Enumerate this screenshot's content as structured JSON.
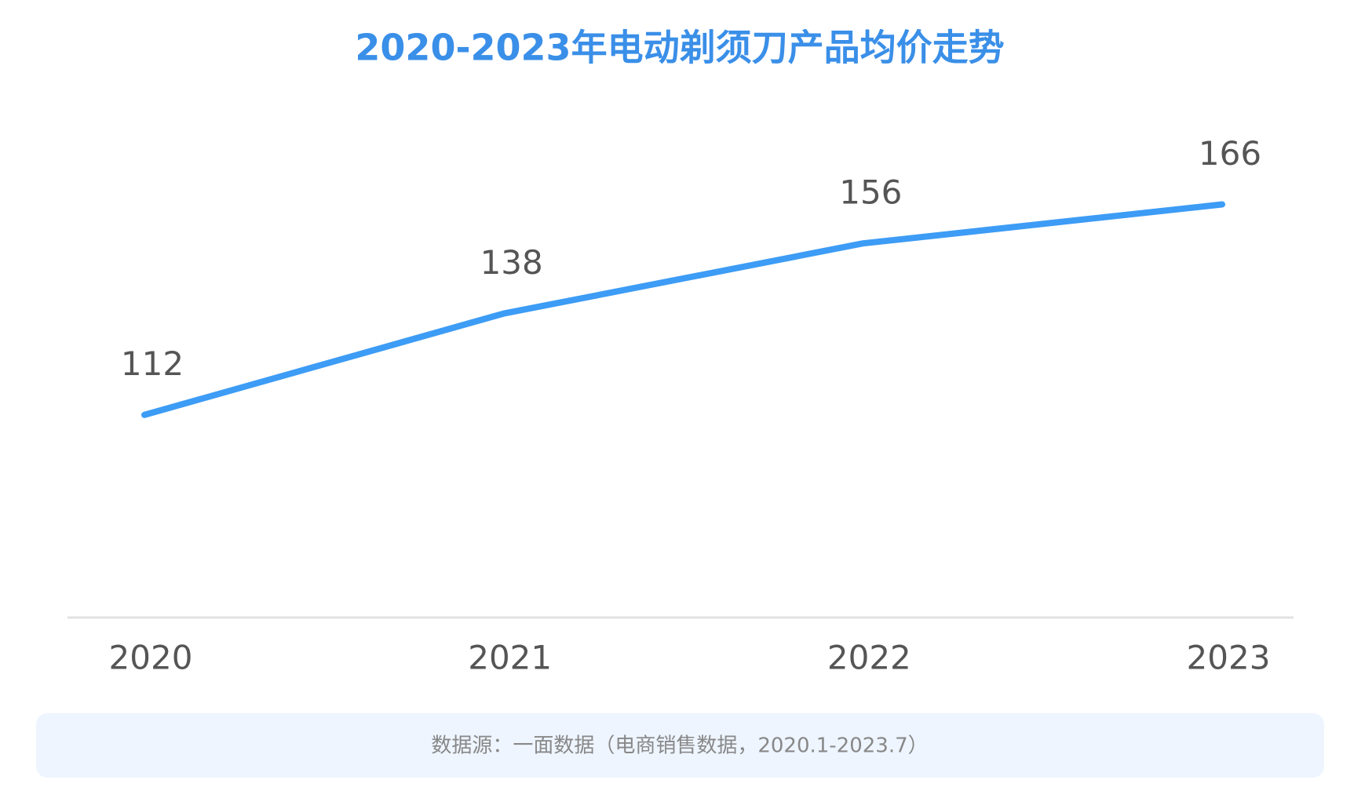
{
  "chart_data": {
    "type": "line",
    "title": "2020-2023年电动剃须刀产品均价走势",
    "categories": [
      "2020",
      "2021",
      "2022",
      "2023"
    ],
    "values": [
      112,
      138,
      156,
      166
    ],
    "color": "#3d9cf5",
    "ylim": [
      60,
      180
    ],
    "source": "数据源：一面数据（电商销售数据，2020.1-2023.7）"
  }
}
